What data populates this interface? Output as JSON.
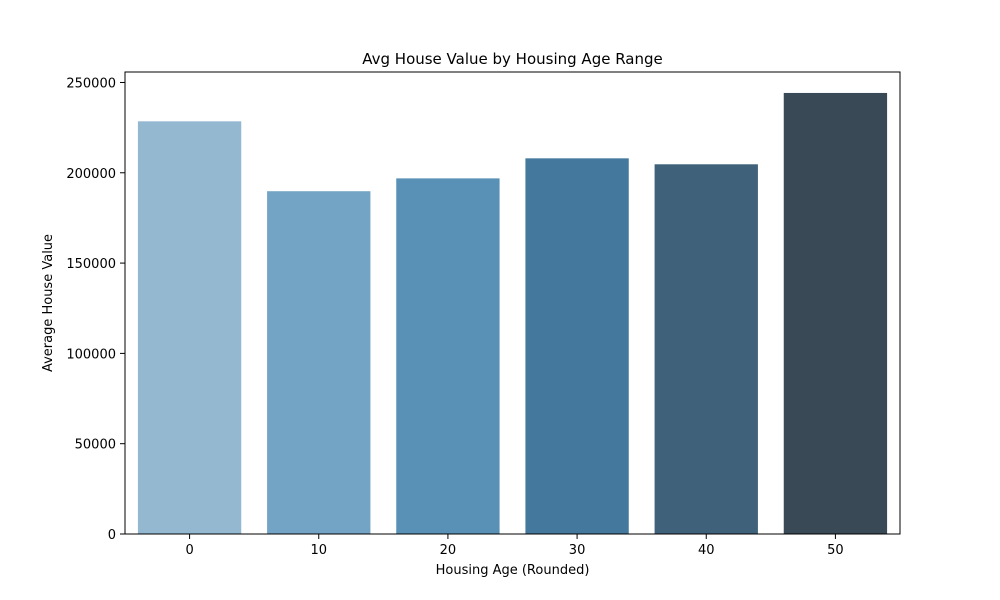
{
  "chart_data": {
    "type": "bar",
    "title": "Avg House Value by Housing Age Range",
    "xlabel": "Housing Age (Rounded)",
    "ylabel": "Average House Value",
    "categories": [
      "0",
      "10",
      "20",
      "30",
      "40",
      "50"
    ],
    "values": [
      228500,
      189800,
      196900,
      208000,
      204700,
      244200
    ],
    "ylim": [
      0,
      255800
    ],
    "yticks": [
      0,
      50000,
      100000,
      150000,
      200000,
      250000
    ],
    "colors": [
      "#95b8d1",
      "#74a4c5",
      "#5890b6",
      "#44799d",
      "#3f627a",
      "#394956"
    ],
    "grid": false,
    "legend": "none"
  }
}
